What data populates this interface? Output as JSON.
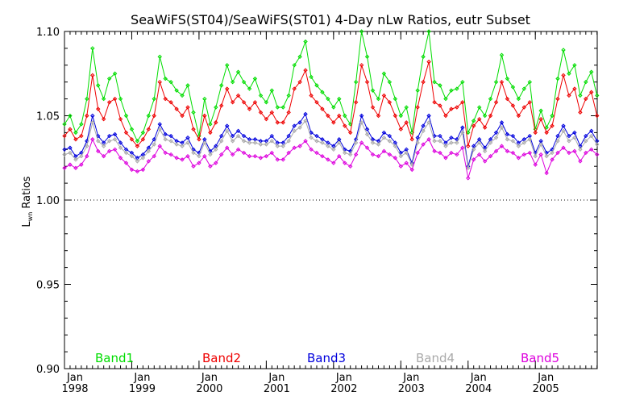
{
  "chart_data": {
    "type": "line",
    "title": "SeaWiFS(ST04)/SeaWiFS(ST01) 4-Day nLw Ratios, eutr Subset",
    "ylabel_main": "L",
    "ylabel_sub": "wn",
    "ylabel_rest": " Ratios",
    "xlim": [
      1998.0,
      2005.92
    ],
    "ylim": [
      0.9,
      1.1
    ],
    "yticks": [
      {
        "value": 0.9,
        "label": "0.90"
      },
      {
        "value": 0.95,
        "label": "0.95"
      },
      {
        "value": 1.0,
        "label": "1.00"
      },
      {
        "value": 1.05,
        "label": "1.05"
      },
      {
        "value": 1.1,
        "label": "1.10"
      }
    ],
    "xticks": [
      {
        "value": 1998,
        "month": "Jan",
        "year": "1998"
      },
      {
        "value": 1999,
        "month": "Jan",
        "year": "1999"
      },
      {
        "value": 2000,
        "month": "Jan",
        "year": "2000"
      },
      {
        "value": 2001,
        "month": "Jan",
        "year": "2001"
      },
      {
        "value": 2002,
        "month": "Jan",
        "year": "2002"
      },
      {
        "value": 2003,
        "month": "Jan",
        "year": "2003"
      },
      {
        "value": 2004,
        "month": "Jan",
        "year": "2004"
      },
      {
        "value": 2005,
        "month": "Jan",
        "year": "2005"
      }
    ],
    "reference_line": 1.0,
    "legend_placement": "bottom-inside",
    "series": [
      {
        "name": "Band1",
        "color": "#00dd00",
        "x": [
          1998.0,
          1998.083,
          1998.167,
          1998.25,
          1998.333,
          1998.417,
          1998.5,
          1998.583,
          1998.667,
          1998.75,
          1998.833,
          1998.917,
          1999.0,
          1999.083,
          1999.167,
          1999.25,
          1999.333,
          1999.417,
          1999.5,
          1999.583,
          1999.667,
          1999.75,
          1999.833,
          1999.917,
          2000.0,
          2000.083,
          2000.167,
          2000.25,
          2000.333,
          2000.417,
          2000.5,
          2000.583,
          2000.667,
          2000.75,
          2000.833,
          2000.917,
          2001.0,
          2001.083,
          2001.167,
          2001.25,
          2001.333,
          2001.417,
          2001.5,
          2001.583,
          2001.667,
          2001.75,
          2001.833,
          2001.917,
          2002.0,
          2002.083,
          2002.167,
          2002.25,
          2002.333,
          2002.417,
          2002.5,
          2002.583,
          2002.667,
          2002.75,
          2002.833,
          2002.917,
          2003.0,
          2003.083,
          2003.167,
          2003.25,
          2003.333,
          2003.417,
          2003.5,
          2003.583,
          2003.667,
          2003.75,
          2003.833,
          2003.917,
          2004.0,
          2004.083,
          2004.167,
          2004.25,
          2004.333,
          2004.417,
          2004.5,
          2004.583,
          2004.667,
          2004.75,
          2004.833,
          2004.917,
          2005.0,
          2005.083,
          2005.167,
          2005.25,
          2005.333,
          2005.417,
          2005.5,
          2005.583,
          2005.667,
          2005.75,
          2005.833,
          2005.917
        ],
        "y": [
          1.045,
          1.05,
          1.04,
          1.045,
          1.06,
          1.09,
          1.068,
          1.06,
          1.072,
          1.075,
          1.06,
          1.05,
          1.042,
          1.035,
          1.04,
          1.05,
          1.06,
          1.085,
          1.072,
          1.07,
          1.065,
          1.062,
          1.068,
          1.052,
          1.038,
          1.06,
          1.045,
          1.055,
          1.068,
          1.08,
          1.07,
          1.076,
          1.07,
          1.066,
          1.072,
          1.062,
          1.058,
          1.065,
          1.055,
          1.055,
          1.062,
          1.08,
          1.085,
          1.094,
          1.073,
          1.068,
          1.064,
          1.06,
          1.055,
          1.06,
          1.05,
          1.045,
          1.07,
          1.1,
          1.085,
          1.065,
          1.06,
          1.075,
          1.07,
          1.06,
          1.05,
          1.055,
          1.04,
          1.065,
          1.085,
          1.1,
          1.07,
          1.068,
          1.06,
          1.065,
          1.066,
          1.07,
          1.04,
          1.047,
          1.055,
          1.05,
          1.06,
          1.07,
          1.086,
          1.072,
          1.067,
          1.06,
          1.066,
          1.07,
          1.042,
          1.053,
          1.043,
          1.05,
          1.072,
          1.089,
          1.075,
          1.08,
          1.062,
          1.07,
          1.076,
          1.062
        ]
      },
      {
        "name": "Band2",
        "color": "#ee0000",
        "x": [
          1998.0,
          1998.083,
          1998.167,
          1998.25,
          1998.333,
          1998.417,
          1998.5,
          1998.583,
          1998.667,
          1998.75,
          1998.833,
          1998.917,
          1999.0,
          1999.083,
          1999.167,
          1999.25,
          1999.333,
          1999.417,
          1999.5,
          1999.583,
          1999.667,
          1999.75,
          1999.833,
          1999.917,
          2000.0,
          2000.083,
          2000.167,
          2000.25,
          2000.333,
          2000.417,
          2000.5,
          2000.583,
          2000.667,
          2000.75,
          2000.833,
          2000.917,
          2001.0,
          2001.083,
          2001.167,
          2001.25,
          2001.333,
          2001.417,
          2001.5,
          2001.583,
          2001.667,
          2001.75,
          2001.833,
          2001.917,
          2002.0,
          2002.083,
          2002.167,
          2002.25,
          2002.333,
          2002.417,
          2002.5,
          2002.583,
          2002.667,
          2002.75,
          2002.833,
          2002.917,
          2003.0,
          2003.083,
          2003.167,
          2003.25,
          2003.333,
          2003.417,
          2003.5,
          2003.583,
          2003.667,
          2003.75,
          2003.833,
          2003.917,
          2004.0,
          2004.083,
          2004.167,
          2004.25,
          2004.333,
          2004.417,
          2004.5,
          2004.583,
          2004.667,
          2004.75,
          2004.833,
          2004.917,
          2005.0,
          2005.083,
          2005.167,
          2005.25,
          2005.333,
          2005.417,
          2005.5,
          2005.583,
          2005.667,
          2005.75,
          2005.833,
          2005.917
        ],
        "y": [
          1.038,
          1.042,
          1.036,
          1.038,
          1.05,
          1.074,
          1.054,
          1.048,
          1.058,
          1.06,
          1.048,
          1.04,
          1.036,
          1.032,
          1.036,
          1.042,
          1.05,
          1.07,
          1.06,
          1.058,
          1.054,
          1.05,
          1.055,
          1.042,
          1.036,
          1.05,
          1.04,
          1.046,
          1.056,
          1.066,
          1.058,
          1.062,
          1.058,
          1.054,
          1.058,
          1.052,
          1.048,
          1.052,
          1.046,
          1.046,
          1.052,
          1.066,
          1.07,
          1.077,
          1.062,
          1.058,
          1.054,
          1.05,
          1.046,
          1.05,
          1.044,
          1.04,
          1.058,
          1.08,
          1.07,
          1.055,
          1.05,
          1.062,
          1.058,
          1.05,
          1.042,
          1.046,
          1.036,
          1.055,
          1.07,
          1.082,
          1.058,
          1.056,
          1.05,
          1.054,
          1.055,
          1.058,
          1.032,
          1.044,
          1.048,
          1.043,
          1.05,
          1.058,
          1.07,
          1.06,
          1.056,
          1.05,
          1.055,
          1.058,
          1.04,
          1.048,
          1.04,
          1.044,
          1.06,
          1.074,
          1.062,
          1.066,
          1.052,
          1.06,
          1.064,
          1.05
        ]
      },
      {
        "name": "Band3",
        "color": "#0000dd",
        "x": [
          1998.0,
          1998.083,
          1998.167,
          1998.25,
          1998.333,
          1998.417,
          1998.5,
          1998.583,
          1998.667,
          1998.75,
          1998.833,
          1998.917,
          1999.0,
          1999.083,
          1999.167,
          1999.25,
          1999.333,
          1999.417,
          1999.5,
          1999.583,
          1999.667,
          1999.75,
          1999.833,
          1999.917,
          2000.0,
          2000.083,
          2000.167,
          2000.25,
          2000.333,
          2000.417,
          2000.5,
          2000.583,
          2000.667,
          2000.75,
          2000.833,
          2000.917,
          2001.0,
          2001.083,
          2001.167,
          2001.25,
          2001.333,
          2001.417,
          2001.5,
          2001.583,
          2001.667,
          2001.75,
          2001.833,
          2001.917,
          2002.0,
          2002.083,
          2002.167,
          2002.25,
          2002.333,
          2002.417,
          2002.5,
          2002.583,
          2002.667,
          2002.75,
          2002.833,
          2002.917,
          2003.0,
          2003.083,
          2003.167,
          2003.25,
          2003.333,
          2003.417,
          2003.5,
          2003.583,
          2003.667,
          2003.75,
          2003.833,
          2003.917,
          2004.0,
          2004.083,
          2004.167,
          2004.25,
          2004.333,
          2004.417,
          2004.5,
          2004.583,
          2004.667,
          2004.75,
          2004.833,
          2004.917,
          2005.0,
          2005.083,
          2005.167,
          2005.25,
          2005.333,
          2005.417,
          2005.5,
          2005.583,
          2005.667,
          2005.75,
          2005.833,
          2005.917
        ],
        "y": [
          1.03,
          1.031,
          1.026,
          1.028,
          1.035,
          1.05,
          1.038,
          1.034,
          1.038,
          1.039,
          1.034,
          1.03,
          1.028,
          1.025,
          1.027,
          1.031,
          1.036,
          1.045,
          1.039,
          1.038,
          1.035,
          1.034,
          1.037,
          1.03,
          1.028,
          1.036,
          1.029,
          1.032,
          1.038,
          1.044,
          1.038,
          1.041,
          1.038,
          1.036,
          1.036,
          1.035,
          1.035,
          1.038,
          1.034,
          1.034,
          1.038,
          1.044,
          1.046,
          1.051,
          1.04,
          1.038,
          1.036,
          1.034,
          1.032,
          1.036,
          1.03,
          1.029,
          1.036,
          1.05,
          1.042,
          1.036,
          1.035,
          1.04,
          1.038,
          1.034,
          1.028,
          1.03,
          1.022,
          1.037,
          1.044,
          1.05,
          1.038,
          1.038,
          1.034,
          1.037,
          1.036,
          1.043,
          1.02,
          1.032,
          1.036,
          1.031,
          1.036,
          1.04,
          1.046,
          1.039,
          1.038,
          1.034,
          1.036,
          1.038,
          1.028,
          1.035,
          1.028,
          1.03,
          1.038,
          1.044,
          1.038,
          1.04,
          1.032,
          1.038,
          1.041,
          1.035
        ]
      },
      {
        "name": "Band4",
        "color": "#aaaaaa",
        "x": [
          1998.0,
          1998.083,
          1998.167,
          1998.25,
          1998.333,
          1998.417,
          1998.5,
          1998.583,
          1998.667,
          1998.75,
          1998.833,
          1998.917,
          1999.0,
          1999.083,
          1999.167,
          1999.25,
          1999.333,
          1999.417,
          1999.5,
          1999.583,
          1999.667,
          1999.75,
          1999.833,
          1999.917,
          2000.0,
          2000.083,
          2000.167,
          2000.25,
          2000.333,
          2000.417,
          2000.5,
          2000.583,
          2000.667,
          2000.75,
          2000.833,
          2000.917,
          2001.0,
          2001.083,
          2001.167,
          2001.25,
          2001.333,
          2001.417,
          2001.5,
          2001.583,
          2001.667,
          2001.75,
          2001.833,
          2001.917,
          2002.0,
          2002.083,
          2002.167,
          2002.25,
          2002.333,
          2002.417,
          2002.5,
          2002.583,
          2002.667,
          2002.75,
          2002.833,
          2002.917,
          2003.0,
          2003.083,
          2003.167,
          2003.25,
          2003.333,
          2003.417,
          2003.5,
          2003.583,
          2003.667,
          2003.75,
          2003.833,
          2003.917,
          2004.0,
          2004.083,
          2004.167,
          2004.25,
          2004.333,
          2004.417,
          2004.5,
          2004.583,
          2004.667,
          2004.75,
          2004.833,
          2004.917,
          2005.0,
          2005.083,
          2005.167,
          2005.25,
          2005.333,
          2005.417,
          2005.5,
          2005.583,
          2005.667,
          2005.75,
          2005.833,
          2005.917
        ],
        "y": [
          1.027,
          1.028,
          1.024,
          1.026,
          1.032,
          1.046,
          1.035,
          1.032,
          1.035,
          1.036,
          1.031,
          1.028,
          1.026,
          1.023,
          1.025,
          1.029,
          1.033,
          1.042,
          1.036,
          1.035,
          1.033,
          1.032,
          1.034,
          1.028,
          1.026,
          1.034,
          1.027,
          1.03,
          1.035,
          1.041,
          1.035,
          1.038,
          1.035,
          1.034,
          1.034,
          1.033,
          1.033,
          1.035,
          1.032,
          1.032,
          1.035,
          1.041,
          1.043,
          1.047,
          1.037,
          1.035,
          1.034,
          1.032,
          1.03,
          1.034,
          1.028,
          1.027,
          1.034,
          1.046,
          1.039,
          1.034,
          1.033,
          1.037,
          1.035,
          1.032,
          1.026,
          1.028,
          1.021,
          1.034,
          1.041,
          1.046,
          1.035,
          1.035,
          1.032,
          1.034,
          1.034,
          1.04,
          1.019,
          1.03,
          1.034,
          1.029,
          1.034,
          1.037,
          1.043,
          1.036,
          1.035,
          1.032,
          1.034,
          1.036,
          1.026,
          1.033,
          1.026,
          1.028,
          1.035,
          1.041,
          1.035,
          1.037,
          1.03,
          1.035,
          1.038,
          1.033
        ]
      },
      {
        "name": "Band5",
        "color": "#dd00dd",
        "x": [
          1998.0,
          1998.083,
          1998.167,
          1998.25,
          1998.333,
          1998.417,
          1998.5,
          1998.583,
          1998.667,
          1998.75,
          1998.833,
          1998.917,
          1999.0,
          1999.083,
          1999.167,
          1999.25,
          1999.333,
          1999.417,
          1999.5,
          1999.583,
          1999.667,
          1999.75,
          1999.833,
          1999.917,
          2000.0,
          2000.083,
          2000.167,
          2000.25,
          2000.333,
          2000.417,
          2000.5,
          2000.583,
          2000.667,
          2000.75,
          2000.833,
          2000.917,
          2001.0,
          2001.083,
          2001.167,
          2001.25,
          2001.333,
          2001.417,
          2001.5,
          2001.583,
          2001.667,
          2001.75,
          2001.833,
          2001.917,
          2002.0,
          2002.083,
          2002.167,
          2002.25,
          2002.333,
          2002.417,
          2002.5,
          2002.583,
          2002.667,
          2002.75,
          2002.833,
          2002.917,
          2003.0,
          2003.083,
          2003.167,
          2003.25,
          2003.333,
          2003.417,
          2003.5,
          2003.583,
          2003.667,
          2003.75,
          2003.833,
          2003.917,
          2004.0,
          2004.083,
          2004.167,
          2004.25,
          2004.333,
          2004.417,
          2004.5,
          2004.583,
          2004.667,
          2004.75,
          2004.833,
          2004.917,
          2005.0,
          2005.083,
          2005.167,
          2005.25,
          2005.333,
          2005.417,
          2005.5,
          2005.583,
          2005.667,
          2005.75,
          2005.833,
          2005.917
        ],
        "y": [
          1.019,
          1.021,
          1.019,
          1.021,
          1.026,
          1.036,
          1.029,
          1.026,
          1.029,
          1.03,
          1.025,
          1.022,
          1.018,
          1.017,
          1.018,
          1.023,
          1.026,
          1.032,
          1.028,
          1.027,
          1.025,
          1.024,
          1.026,
          1.02,
          1.022,
          1.026,
          1.02,
          1.022,
          1.027,
          1.031,
          1.027,
          1.03,
          1.028,
          1.026,
          1.026,
          1.025,
          1.026,
          1.028,
          1.024,
          1.024,
          1.028,
          1.031,
          1.032,
          1.035,
          1.03,
          1.028,
          1.026,
          1.024,
          1.022,
          1.026,
          1.022,
          1.02,
          1.027,
          1.034,
          1.031,
          1.027,
          1.026,
          1.029,
          1.027,
          1.025,
          1.02,
          1.022,
          1.018,
          1.028,
          1.033,
          1.036,
          1.029,
          1.028,
          1.025,
          1.028,
          1.027,
          1.031,
          1.013,
          1.024,
          1.027,
          1.023,
          1.026,
          1.029,
          1.032,
          1.029,
          1.028,
          1.025,
          1.027,
          1.028,
          1.021,
          1.027,
          1.016,
          1.024,
          1.028,
          1.031,
          1.028,
          1.029,
          1.023,
          1.028,
          1.03,
          1.027
        ]
      }
    ]
  }
}
